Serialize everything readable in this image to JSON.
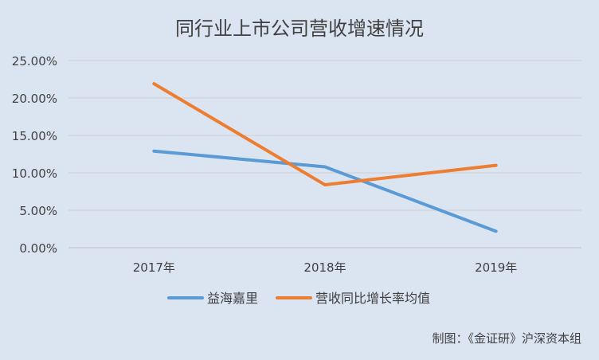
{
  "chart_data": {
    "type": "line",
    "title": "同行业上市公司营收增速情况",
    "categories": [
      "2017年",
      "2018年",
      "2019年"
    ],
    "series": [
      {
        "name": "益海嘉里",
        "values": [
          12.9,
          10.8,
          2.2
        ],
        "color": "#5b9bd5"
      },
      {
        "name": "营收同比增长率均值",
        "values": [
          21.9,
          8.4,
          11.0
        ],
        "color": "#ed7d31"
      }
    ],
    "yticks": [
      "0.00%",
      "5.00%",
      "10.00%",
      "15.00%",
      "20.00%",
      "25.00%"
    ],
    "ylim": [
      0,
      25
    ],
    "grid": true,
    "legend_position": "bottom"
  },
  "credit": "制图：《金证研》沪深资本组"
}
